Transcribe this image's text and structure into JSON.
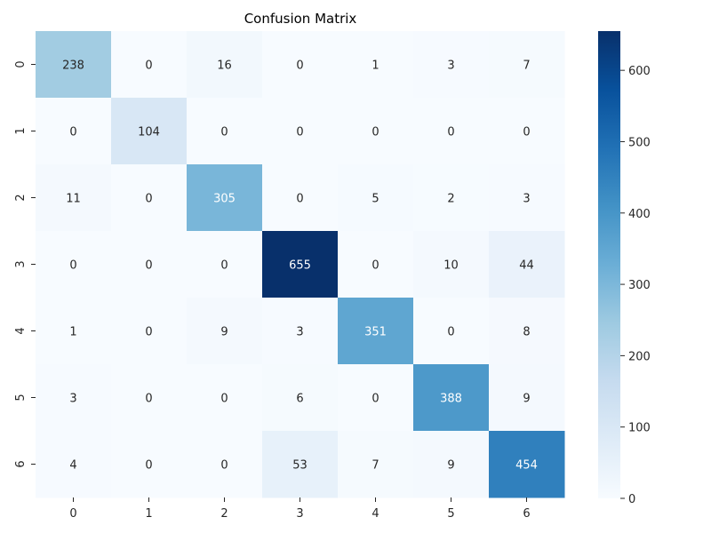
{
  "chart_data": {
    "type": "heatmap",
    "title": "Confusion Matrix",
    "xlabel": "",
    "ylabel": "",
    "x_categories": [
      "0",
      "1",
      "2",
      "3",
      "4",
      "5",
      "6"
    ],
    "y_categories": [
      "0",
      "1",
      "2",
      "3",
      "4",
      "5",
      "6"
    ],
    "matrix": [
      [
        238,
        0,
        16,
        0,
        1,
        3,
        7
      ],
      [
        0,
        104,
        0,
        0,
        0,
        0,
        0
      ],
      [
        11,
        0,
        305,
        0,
        5,
        2,
        3
      ],
      [
        0,
        0,
        0,
        655,
        0,
        10,
        44
      ],
      [
        1,
        0,
        9,
        3,
        351,
        0,
        8
      ],
      [
        3,
        0,
        0,
        6,
        0,
        388,
        9
      ],
      [
        4,
        0,
        0,
        53,
        7,
        9,
        454
      ]
    ],
    "value_range": [
      0,
      655
    ],
    "colormap": "Blues",
    "colorbar": {
      "ticks": [
        "0",
        "100",
        "200",
        "300",
        "400",
        "500",
        "600"
      ],
      "tick_values": [
        0,
        100,
        200,
        300,
        400,
        500,
        600
      ]
    },
    "grid": false
  }
}
